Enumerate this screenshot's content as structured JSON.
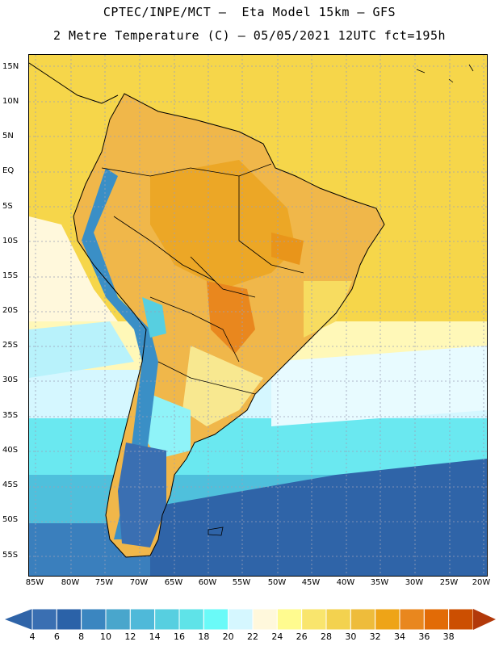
{
  "header": {
    "line1": "CPTEC/INPE/MCT –  Eta Model 15km – GFS",
    "line2": "2 Metre Temperature (C) – 05/05/2021 12UTC fct=195h"
  },
  "map": {
    "lat_labels": [
      "15N",
      "10N",
      "5N",
      "EQ",
      "5S",
      "10S",
      "15S",
      "20S",
      "25S",
      "30S",
      "35S",
      "40S",
      "45S",
      "50S",
      "55S"
    ],
    "lon_labels": [
      "85W",
      "80W",
      "75W",
      "70W",
      "65W",
      "60W",
      "55W",
      "50W",
      "45W",
      "40W",
      "35W",
      "30W",
      "25W",
      "20W"
    ]
  },
  "legend": {
    "labels": [
      "4",
      "6",
      "8",
      "10",
      "12",
      "14",
      "16",
      "18",
      "20",
      "22",
      "24",
      "26",
      "28",
      "30",
      "32",
      "34",
      "36",
      "38"
    ],
    "colors": [
      "#3a6fb2",
      "#2b62a8",
      "#3b86c0",
      "#49a6cc",
      "#4fb9d9",
      "#57cfe0",
      "#5fe3e8",
      "#6afaf8",
      "#d5f7ff",
      "#fff8dc",
      "#fffb8f",
      "#f9e56d",
      "#f3d24f",
      "#eebc3b",
      "#eea417",
      "#e9871e",
      "#e26b06",
      "#cc4f01"
    ],
    "low_color": "#2f64a8",
    "high_color": "#b2390a"
  }
}
